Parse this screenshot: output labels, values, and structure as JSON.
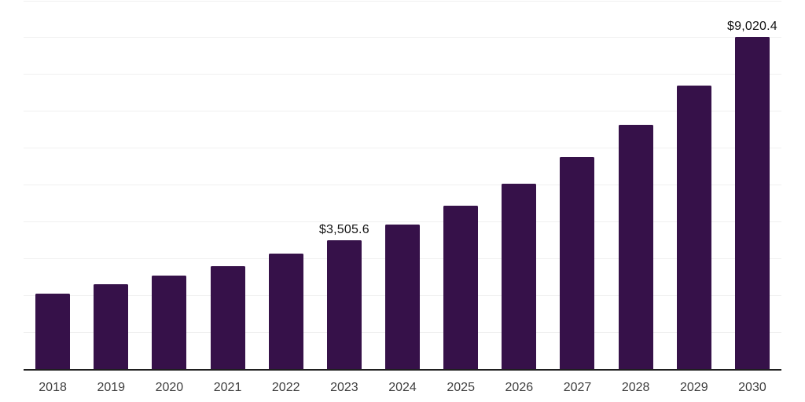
{
  "chart_data": {
    "type": "bar",
    "title": "",
    "xlabel": "",
    "ylabel": "",
    "categories": [
      "2018",
      "2019",
      "2020",
      "2021",
      "2022",
      "2023",
      "2024",
      "2025",
      "2026",
      "2027",
      "2028",
      "2029",
      "2030"
    ],
    "values": [
      2050,
      2305,
      2540,
      2800,
      3135,
      3505.6,
      3925,
      4435,
      5030,
      5755,
      6630,
      7700,
      9020.4
    ],
    "value_labels": [
      "",
      "",
      "",
      "",
      "",
      "$3,505.6",
      "",
      "",
      "",
      "",
      "",
      "",
      "$9,020.4"
    ],
    "ylim": [
      0,
      10000
    ],
    "gridline_step": 1000,
    "grid": "horizontal-only",
    "y_tick_labels_visible": false,
    "legend": "none",
    "colors": {
      "bar": "#361149",
      "axis_line": "#1f1f1f",
      "gridline": "#f0f0f0",
      "value_label_text": "#131313",
      "tick_label_text": "#3f3f3f",
      "background": "#ffffff"
    }
  }
}
